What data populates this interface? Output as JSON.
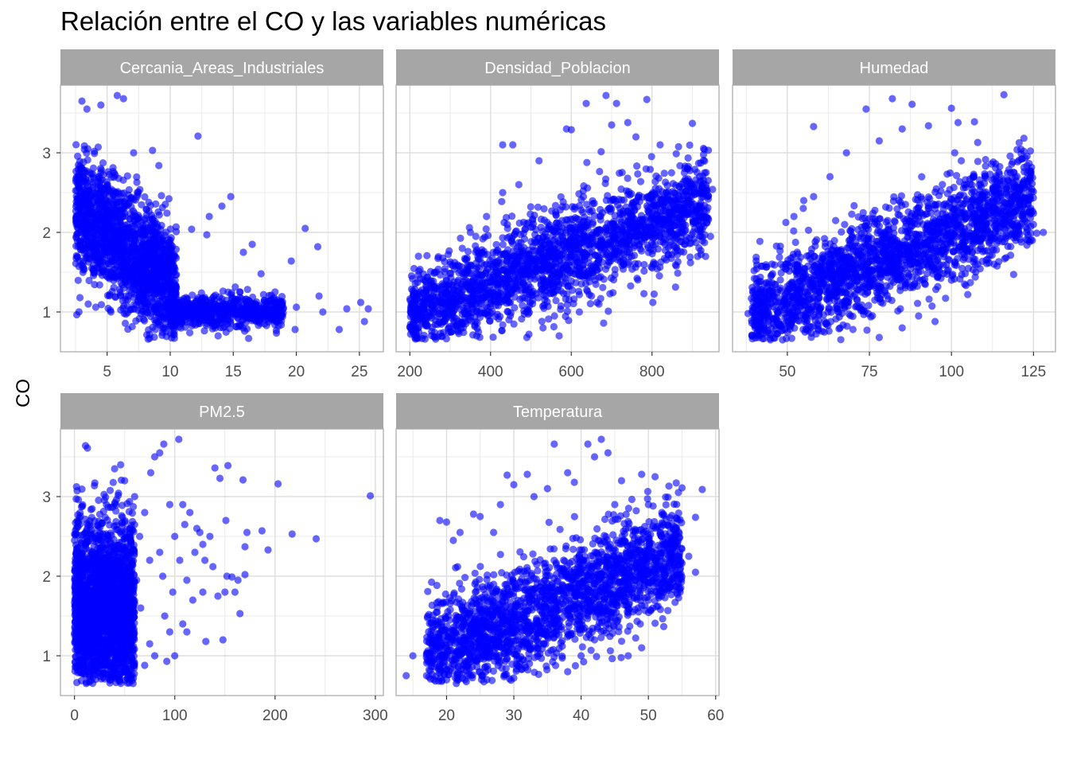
{
  "chart_data": {
    "type": "scatter",
    "title": "Relación entre el CO y las variables numéricas",
    "xlabel": "",
    "ylabel": "CO",
    "y_ticks": [
      1,
      2,
      3
    ],
    "y_range": [
      0.5,
      3.85
    ],
    "grid": true,
    "point_color": "#0000FF",
    "facet_header_color": "#A6A6A6",
    "facets": [
      {
        "name": "Cercania_Areas_Industriales",
        "x_ticks": [
          5,
          10,
          15,
          20,
          25
        ],
        "x_range": [
          1.3,
          26.9
        ],
        "trend": {
          "x_min": 2.5,
          "x_max": 10.5,
          "y_at_min": 2.3,
          "y_at_max": 1.25,
          "spread": 0.38
        },
        "trend2": {
          "x_min": 10,
          "x_max": 19,
          "y_at_min": 1.0,
          "y_at_max": 1.0,
          "spread": 0.1
        },
        "points": [
          [
            3.0,
            3.65
          ],
          [
            5.8,
            3.72
          ],
          [
            6.3,
            3.68
          ],
          [
            4.5,
            3.6
          ],
          [
            3.4,
            3.55
          ],
          [
            12.2,
            3.21
          ],
          [
            14.8,
            2.45
          ],
          [
            20.7,
            2.05
          ],
          [
            21.7,
            1.82
          ],
          [
            19.6,
            1.64
          ],
          [
            23.4,
            0.78
          ],
          [
            25.1,
            1.12
          ],
          [
            25.7,
            1.04
          ],
          [
            25.4,
            0.88
          ],
          [
            21.8,
            1.2
          ],
          [
            22.1,
            1.0
          ],
          [
            20.0,
            1.06
          ],
          [
            18.5,
            1.15
          ],
          [
            17.2,
            1.48
          ],
          [
            16.5,
            1.85
          ],
          [
            15.8,
            1.75
          ],
          [
            13.1,
            2.2
          ],
          [
            14.1,
            2.33
          ],
          [
            12.9,
            1.97
          ],
          [
            11.7,
            2.04
          ],
          [
            8.6,
            3.03
          ],
          [
            9.1,
            2.84
          ],
          [
            7.1,
            3.0
          ],
          [
            3.5,
            1.1
          ],
          [
            5.3,
            1.0
          ],
          [
            4.1,
            1.06
          ],
          [
            6.5,
            1.2
          ],
          [
            18.3,
            0.84
          ],
          [
            19.9,
            0.78
          ],
          [
            16.8,
            1.0
          ],
          [
            24.0,
            1.04
          ]
        ]
      },
      {
        "name": "Densidad_Poblacion",
        "x_ticks": [
          200,
          400,
          600,
          800
        ],
        "x_range": [
          166,
          966
        ],
        "trend": {
          "x_min": 200,
          "x_max": 940,
          "y_at_min": 0.95,
          "y_at_max": 2.4,
          "spread": 0.3
        },
        "points": [
          [
            686,
            3.72
          ],
          [
            787,
            3.67
          ],
          [
            712,
            3.62
          ],
          [
            637,
            3.62
          ],
          [
            900,
            3.37
          ],
          [
            740,
            3.38
          ],
          [
            588,
            3.3
          ],
          [
            600,
            3.29
          ],
          [
            455,
            3.1
          ],
          [
            430,
            3.1
          ],
          [
            930,
            3.04
          ],
          [
            950,
            2.54
          ],
          [
            888,
            2.45
          ],
          [
            260,
            1.31
          ],
          [
            210,
            1.2
          ],
          [
            225,
            0.95
          ],
          [
            215,
            0.8
          ],
          [
            370,
            0.75
          ],
          [
            495,
            0.72
          ],
          [
            530,
            0.8
          ],
          [
            490,
            0.68
          ],
          [
            570,
            0.7
          ],
          [
            680,
            0.86
          ],
          [
            802,
            1.12
          ],
          [
            780,
            1.23
          ],
          [
            840,
            1.72
          ],
          [
            870,
            2.0
          ],
          [
            920,
            2.03
          ],
          [
            945,
            1.95
          ],
          [
            920,
            2.25
          ],
          [
            880,
            2.75
          ],
          [
            820,
            3.1
          ],
          [
            760,
            3.2
          ],
          [
            700,
            3.35
          ],
          [
            520,
            2.9
          ],
          [
            470,
            2.6
          ],
          [
            430,
            2.5
          ],
          [
            390,
            2.2
          ],
          [
            350,
            2.0
          ],
          [
            330,
            1.8
          ],
          [
            300,
            1.6
          ],
          [
            320,
            1.4
          ],
          [
            880,
            1.85
          ],
          [
            620,
            1.0
          ],
          [
            650,
            1.2
          ]
        ]
      },
      {
        "name": "Humedad",
        "x_ticks": [
          50,
          75,
          100,
          125
        ],
        "x_range": [
          33.3,
          131.7
        ],
        "trend": {
          "x_min": 39,
          "x_max": 125,
          "y_at_min": 0.95,
          "y_at_max": 2.45,
          "spread": 0.3
        },
        "points": [
          [
            116,
            3.73
          ],
          [
            82,
            3.68
          ],
          [
            74,
            3.55
          ],
          [
            88,
            3.61
          ],
          [
            100,
            3.56
          ],
          [
            107,
            3.39
          ],
          [
            102,
            3.38
          ],
          [
            58,
            3.33
          ],
          [
            108,
            3.13
          ],
          [
            101,
            3.0
          ],
          [
            120,
            3.04
          ],
          [
            103,
            2.9
          ],
          [
            118,
            2.75
          ],
          [
            124,
            2.69
          ],
          [
            118,
            2.55
          ],
          [
            122,
            2.35
          ],
          [
            125,
            2.24
          ],
          [
            126,
            1.99
          ],
          [
            128,
            2.0
          ],
          [
            123,
            1.84
          ],
          [
            117,
            2.32
          ],
          [
            38,
            0.98
          ],
          [
            40,
            1.05
          ],
          [
            42,
            0.73
          ],
          [
            46,
            1.2
          ],
          [
            48,
            1.6
          ],
          [
            45,
            1.45
          ],
          [
            43,
            1.35
          ],
          [
            55,
            2.4
          ],
          [
            52,
            2.2
          ],
          [
            58,
            2.45
          ],
          [
            63,
            2.7
          ],
          [
            68,
            3.0
          ],
          [
            78,
            3.15
          ],
          [
            85,
            3.3
          ],
          [
            93,
            3.34
          ],
          [
            95,
            0.88
          ],
          [
            90,
            0.95
          ],
          [
            85,
            0.8
          ],
          [
            78,
            0.68
          ],
          [
            70,
            0.78
          ],
          [
            100,
            1.4
          ],
          [
            104,
            1.35
          ],
          [
            108,
            1.6
          ],
          [
            113,
            1.6
          ],
          [
            112,
            1.9
          ]
        ]
      },
      {
        "name": "PM2.5",
        "x_ticks": [
          0,
          100,
          200,
          300
        ],
        "x_range": [
          -14,
          308
        ],
        "trend": {
          "x_min": 0,
          "x_max": 60,
          "y_at_min": 1.6,
          "y_at_max": 1.6,
          "spread": 0.55
        },
        "points": [
          [
            295,
            3.01
          ],
          [
            241,
            2.47
          ],
          [
            217,
            2.53
          ],
          [
            203,
            3.16
          ],
          [
            193,
            2.33
          ],
          [
            187,
            2.57
          ],
          [
            172,
            2.55
          ],
          [
            170,
            2.37
          ],
          [
            165,
            1.53
          ],
          [
            151,
            2.7
          ],
          [
            148,
            1.2
          ],
          [
            131,
            1.18
          ],
          [
            153,
            3.39
          ],
          [
            168,
            3.21
          ],
          [
            140,
            3.36
          ],
          [
            145,
            3.23
          ],
          [
            157,
            1.99
          ],
          [
            160,
            1.8
          ],
          [
            163,
            1.95
          ],
          [
            170,
            2.02
          ],
          [
            152,
            2.0
          ],
          [
            150,
            1.8
          ],
          [
            138,
            2.12
          ],
          [
            143,
            1.75
          ],
          [
            130,
            2.2
          ],
          [
            125,
            2.55
          ],
          [
            120,
            2.3
          ],
          [
            110,
            2.65
          ],
          [
            104,
            3.72
          ],
          [
            89,
            3.66
          ],
          [
            85,
            3.55
          ],
          [
            80,
            3.5
          ],
          [
            76,
            3.3
          ],
          [
            11,
            3.64
          ],
          [
            13,
            3.61
          ],
          [
            95,
            2.9
          ],
          [
            100,
            2.5
          ],
          [
            105,
            2.2
          ],
          [
            112,
            1.95
          ],
          [
            118,
            1.7
          ],
          [
            90,
            1.5
          ],
          [
            95,
            1.3
          ],
          [
            92,
            0.93
          ],
          [
            75,
            1.15
          ],
          [
            70,
            0.88
          ],
          [
            80,
            1.0
          ],
          [
            88,
            2.0
          ],
          [
            98,
            1.8
          ],
          [
            65,
            2.5
          ],
          [
            70,
            2.8
          ],
          [
            60,
            3.0
          ],
          [
            75,
            2.2
          ],
          [
            85,
            2.3
          ],
          [
            66,
            1.6
          ],
          [
            58,
            1.2
          ],
          [
            62,
            1.95
          ],
          [
            108,
            2.9
          ],
          [
            115,
            2.8
          ],
          [
            122,
            2.6
          ],
          [
            128,
            2.4
          ],
          [
            135,
            2.5
          ],
          [
            128,
            1.8
          ],
          [
            108,
            1.4
          ],
          [
            112,
            1.3
          ],
          [
            100,
            1.0
          ],
          [
            46,
            3.4
          ],
          [
            40,
            3.35
          ],
          [
            50,
            3.2
          ]
        ]
      },
      {
        "name": "Temperatura",
        "x_ticks": [
          20,
          30,
          40,
          50,
          60
        ],
        "x_range": [
          12.5,
          60.5
        ],
        "trend": {
          "x_min": 17,
          "x_max": 55,
          "y_at_min": 1.0,
          "y_at_max": 2.3,
          "spread": 0.33
        },
        "points": [
          [
            43,
            3.72
          ],
          [
            41,
            3.66
          ],
          [
            36,
            3.66
          ],
          [
            44,
            3.55
          ],
          [
            42,
            3.5
          ],
          [
            32,
            3.28
          ],
          [
            29,
            3.27
          ],
          [
            38,
            3.3
          ],
          [
            49,
            3.28
          ],
          [
            51,
            3.25
          ],
          [
            55,
            3.11
          ],
          [
            58,
            3.09
          ],
          [
            57,
            2.74
          ],
          [
            54,
            2.5
          ],
          [
            56,
            2.25
          ],
          [
            57,
            2.05
          ],
          [
            53,
            1.85
          ],
          [
            50,
            1.7
          ],
          [
            48,
            1.58
          ],
          [
            47,
            1.0
          ],
          [
            49,
            1.1
          ],
          [
            14,
            0.75
          ],
          [
            15,
            1.0
          ],
          [
            17,
            0.98
          ],
          [
            19,
            2.7
          ],
          [
            20,
            2.68
          ],
          [
            22,
            2.55
          ],
          [
            24,
            2.78
          ],
          [
            21,
            2.45
          ],
          [
            25,
            2.75
          ],
          [
            27,
            2.55
          ],
          [
            28,
            2.9
          ],
          [
            30,
            3.15
          ],
          [
            33,
            3.0
          ],
          [
            35,
            3.1
          ],
          [
            39,
            3.18
          ],
          [
            46,
            3.2
          ],
          [
            44,
            1.4
          ],
          [
            42,
            1.2
          ],
          [
            40,
            1.0
          ],
          [
            38,
            0.8
          ],
          [
            30,
            0.72
          ],
          [
            26,
            0.7
          ],
          [
            52,
            2.8
          ],
          [
            50,
            2.9
          ],
          [
            45,
            2.9
          ]
        ]
      }
    ]
  }
}
